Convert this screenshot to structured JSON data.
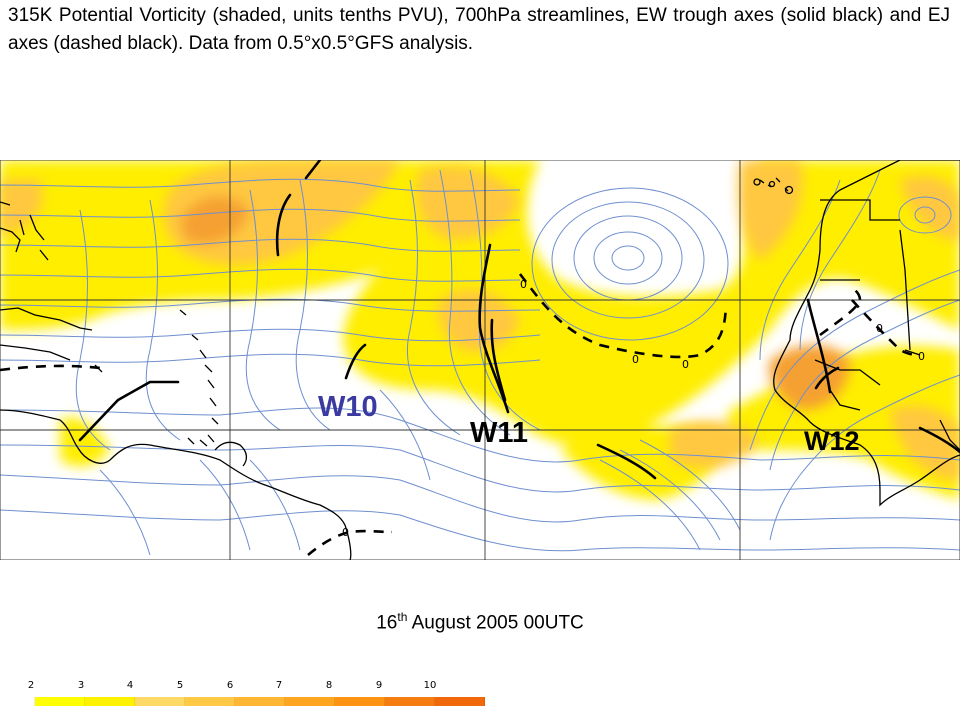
{
  "caption": "315K Potential Vorticity (shaded, units tenths PVU), 700hPa streamlines, EW trough axes (solid black) and EJ axes (dashed black). Data from 0.5°x0.5°GFS analysis.",
  "date": {
    "day": "16",
    "suffix": "th",
    "rest": " August 2005 00UTC"
  },
  "map": {
    "wave_labels": [
      "W10",
      "W11",
      "W12"
    ],
    "contour_labels": [
      "0",
      "0",
      "0",
      "0",
      "0",
      "0"
    ],
    "colors": {
      "ocean": "#ffffff",
      "pv_low": "#ffee00",
      "pv_mid": "#ffc840",
      "pv_high": "#f5a030",
      "streamline": "#6f8fd0",
      "grid": "#333333",
      "coast": "#000000",
      "label_w10": "#3a3aa0",
      "label_w11": "#000000",
      "label_w12": "#000000"
    }
  },
  "colorbar": {
    "labels": [
      "2",
      "3",
      "4",
      "5",
      "6",
      "7",
      "8",
      "9",
      "10"
    ],
    "colors": [
      "#ffffff",
      "#ffff00",
      "#fff200",
      "#ffd966",
      "#ffc845",
      "#ffb733",
      "#ffa520",
      "#ff9414",
      "#f57c10",
      "#f0680a"
    ]
  }
}
